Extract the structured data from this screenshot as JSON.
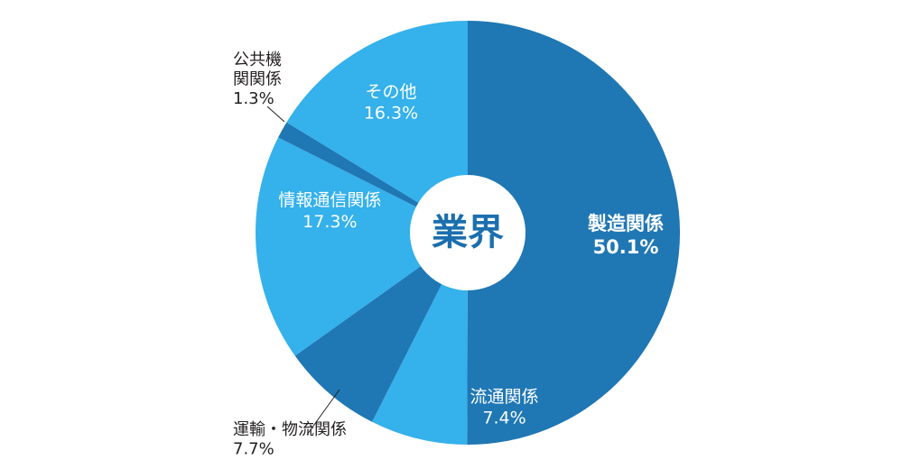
{
  "chart_data": {
    "type": "pie",
    "style": "donut-center-label",
    "center_label": "業界",
    "start_angle_deg": 0,
    "direction": "clockwise",
    "slices": [
      {
        "label": "製造関係",
        "value": 50.1,
        "value_text": "50.1%",
        "color": "#1f77b4",
        "label_placement": "inside",
        "bold": true
      },
      {
        "label": "流通関係",
        "value": 7.4,
        "value_text": "7.4%",
        "color": "#35b1ec",
        "label_placement": "inside"
      },
      {
        "label": "運輸・物流関係",
        "value": 7.7,
        "value_text": "7.7%",
        "color": "#1f77b4",
        "label_placement": "outside-bottom-left"
      },
      {
        "label": "情報通信関係",
        "value": 17.3,
        "value_text": "17.3%",
        "color": "#35b1ec",
        "label_placement": "inside"
      },
      {
        "label": "公共機関関係",
        "value": 1.3,
        "value_text": "1.3%",
        "color": "#1f77b4",
        "label_placement": "outside-top-left"
      },
      {
        "label": "その他",
        "value": 16.3,
        "value_text": "16.3%",
        "color": "#35b1ec",
        "label_placement": "inside"
      }
    ]
  }
}
